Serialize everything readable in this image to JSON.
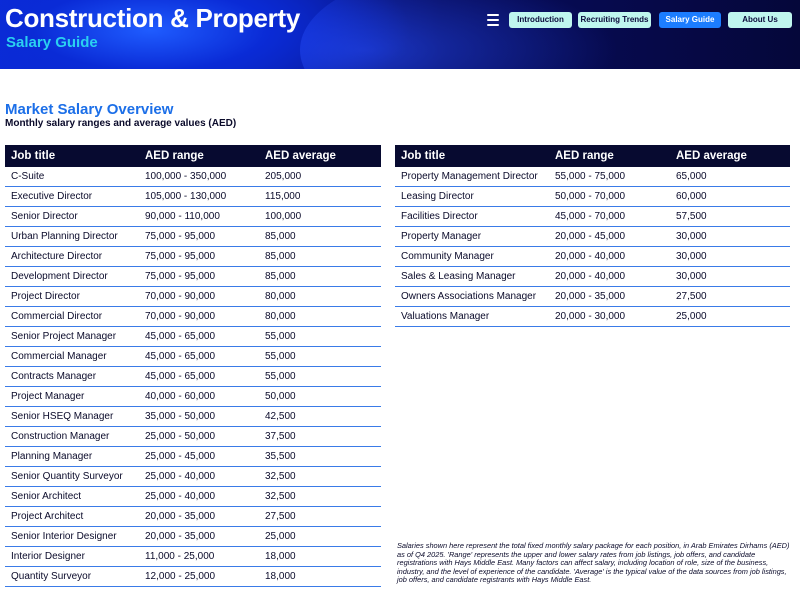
{
  "header": {
    "title": "Construction & Property",
    "subtitle": "Salary Guide",
    "nav": [
      {
        "label": "Introduction",
        "active": false
      },
      {
        "label": "Recruiting Trends",
        "active": false
      },
      {
        "label": "Salary Guide",
        "active": true
      },
      {
        "label": "About Us",
        "active": false
      }
    ],
    "colors": {
      "nav_bg": "#bff6ee",
      "nav_active": "#1c7dff",
      "header_dark": "#05073a",
      "subtitle": "#2ad0f0"
    }
  },
  "section": {
    "title": "Market Salary Overview",
    "subtitle": "Monthly salary ranges and average values (AED)"
  },
  "columns": [
    "Job title",
    "AED range",
    "AED average"
  ],
  "left_table": [
    [
      "C-Suite",
      "100,000 - 350,000",
      "205,000"
    ],
    [
      "Executive Director",
      "105,000 - 130,000",
      "115,000"
    ],
    [
      "Senior Director",
      "90,000 - 110,000",
      "100,000"
    ],
    [
      "Urban Planning Director",
      "75,000 - 95,000",
      "85,000"
    ],
    [
      "Architecture Director",
      "75,000 - 95,000",
      "85,000"
    ],
    [
      "Development Director",
      "75,000 - 95,000",
      "85,000"
    ],
    [
      "Project Director",
      "70,000 - 90,000",
      "80,000"
    ],
    [
      "Commercial Director",
      "70,000 - 90,000",
      "80,000"
    ],
    [
      "Senior Project Manager",
      "45,000 - 65,000",
      "55,000"
    ],
    [
      "Commercial Manager",
      "45,000 - 65,000",
      "55,000"
    ],
    [
      "Contracts Manager",
      "45,000 - 65,000",
      "55,000"
    ],
    [
      "Project Manager",
      "40,000 - 60,000",
      "50,000"
    ],
    [
      "Senior HSEQ Manager",
      "35,000 - 50,000",
      "42,500"
    ],
    [
      "Construction Manager",
      "25,000 - 50,000",
      "37,500"
    ],
    [
      "Planning Manager",
      "25,000 - 45,000",
      "35,500"
    ],
    [
      "Senior Quantity Surveyor",
      "25,000 - 40,000",
      "32,500"
    ],
    [
      "Senior Architect",
      "25,000 - 40,000",
      "32,500"
    ],
    [
      "Project Architect",
      "20,000 - 35,000",
      "27,500"
    ],
    [
      "Senior Interior Designer",
      "20,000 - 35,000",
      "25,000"
    ],
    [
      "Interior Designer",
      "11,000 - 25,000",
      "18,000"
    ],
    [
      "Quantity Surveyor",
      "12,000 - 25,000",
      "18,000"
    ]
  ],
  "right_table": [
    [
      "Property Management Director",
      "55,000 - 75,000",
      "65,000"
    ],
    [
      "Leasing Director",
      "50,000 - 70,000",
      "60,000"
    ],
    [
      "Facilities Director",
      "45,000 - 70,000",
      "57,500"
    ],
    [
      "Property Manager",
      "20,000 - 45,000",
      "30,000"
    ],
    [
      "Community Manager",
      "20,000 - 40,000",
      "30,000"
    ],
    [
      "Sales & Leasing Manager",
      "20,000 - 40,000",
      "30,000"
    ],
    [
      "Owners Associations Manager",
      "20,000 - 35,000",
      "27,500"
    ],
    [
      "Valuations Manager",
      "20,000 - 30,000",
      "25,000"
    ]
  ],
  "footnote": "Salaries shown here represent the total fixed monthly salary package for each position, in Arab Emirates Dirhams (AED) as of Q4 2025. 'Range' represents the upper and lower salary rates from job listings, job offers, and candidate registrations with Hays Middle East. Many factors can affect salary, including location of role, size of the business, industry, and the level of experience of the candidate. 'Average' is the typical value of the data sources from job listings, job offers, and candidate registrants with Hays Middle East."
}
